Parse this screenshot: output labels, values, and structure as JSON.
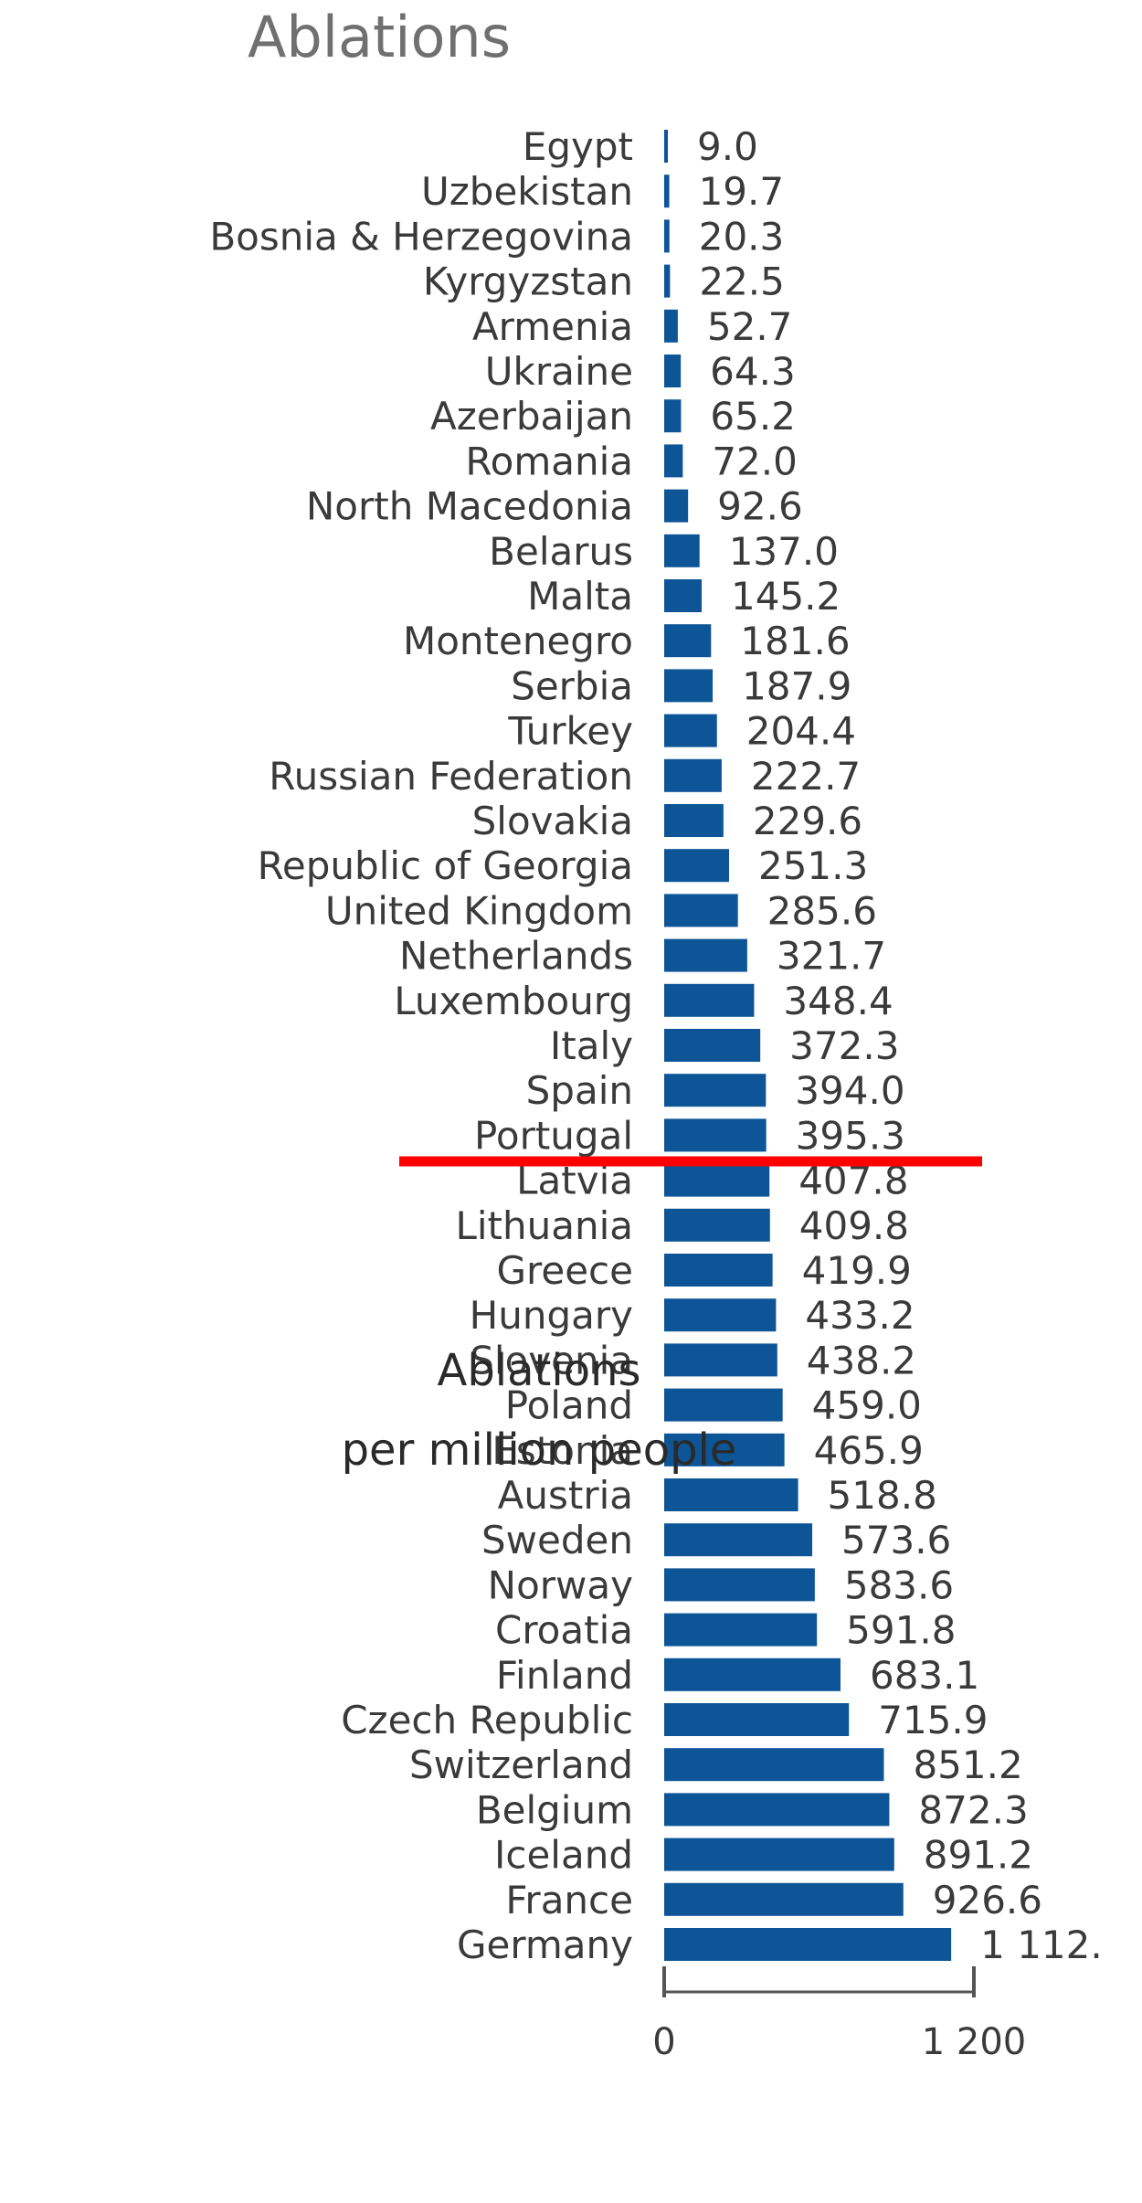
{
  "chart_data": {
    "type": "bar",
    "orientation": "horizontal",
    "title": "Ablations",
    "xlabel_line1": "Ablations",
    "xlabel_line2": "per million people",
    "categories": [
      "Egypt",
      "Uzbekistan",
      "Bosnia & Herzegovina",
      "Kyrgyzstan",
      "Armenia",
      "Ukraine",
      "Azerbaijan",
      "Romania",
      "North Macedonia",
      "Belarus",
      "Malta",
      "Montenegro",
      "Serbia",
      "Turkey",
      "Russian Federation",
      "Slovakia",
      "Republic of Georgia",
      "United Kingdom",
      "Netherlands",
      "Luxembourg",
      "Italy",
      "Spain",
      "Portugal",
      "Latvia",
      "Lithuania",
      "Greece",
      "Hungary",
      "Slovenia",
      "Poland",
      "Estonia",
      "Austria",
      "Sweden",
      "Norway",
      "Croatia",
      "Finland",
      "Czech Republic",
      "Switzerland",
      "Belgium",
      "Iceland",
      "France",
      "Germany"
    ],
    "values": [
      9.0,
      19.7,
      20.3,
      22.5,
      52.7,
      64.3,
      65.2,
      72.0,
      92.6,
      137.0,
      145.2,
      181.6,
      187.9,
      204.4,
      222.7,
      229.6,
      251.3,
      285.6,
      321.7,
      348.4,
      372.3,
      394.0,
      395.3,
      407.8,
      409.8,
      419.9,
      433.2,
      438.2,
      459.0,
      465.9,
      518.8,
      573.6,
      583.6,
      591.8,
      683.1,
      715.9,
      851.2,
      872.3,
      891.2,
      926.6,
      1112
    ],
    "value_labels": [
      "9.0",
      "19.7",
      "20.3",
      "22.5",
      "52.7",
      "64.3",
      "65.2",
      "72.0",
      "92.6",
      "137.0",
      "145.2",
      "181.6",
      "187.9",
      "204.4",
      "222.7",
      "229.6",
      "251.3",
      "285.6",
      "321.7",
      "348.4",
      "372.3",
      "394.0",
      "395.3",
      "407.8",
      "409.8",
      "419.9",
      "433.2",
      "438.2",
      "459.0",
      "465.9",
      "518.8",
      "573.6",
      "583.6",
      "591.8",
      "683.1",
      "715.9",
      "851.2",
      "872.3",
      "891.2",
      "926.6",
      "1 112."
    ],
    "xlim": [
      0,
      1200
    ],
    "xticks": [
      0,
      1200
    ],
    "xtick_labels": [
      "0",
      "1 200"
    ],
    "grid": false,
    "legend": "none",
    "bar_color": "#0d5597",
    "highlight_line": {
      "after_category": "Portugal",
      "color": "#ff0000"
    }
  }
}
